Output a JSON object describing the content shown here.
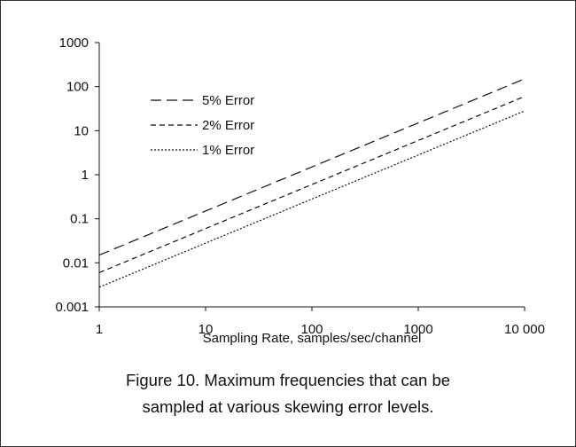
{
  "chart_data": {
    "type": "line",
    "xlabel": "Sampling Rate, samples/sec/channel",
    "ylabel": "",
    "x_scale": "log",
    "y_scale": "log",
    "xlim": [
      1,
      10000
    ],
    "ylim": [
      0.001,
      1000
    ],
    "x_ticks": [
      {
        "value": 1,
        "label": "1"
      },
      {
        "value": 10,
        "label": "10"
      },
      {
        "value": 100,
        "label": "100"
      },
      {
        "value": 1000,
        "label": "1000"
      },
      {
        "value": 10000,
        "label": "10 000"
      }
    ],
    "y_ticks": [
      {
        "value": 0.001,
        "label": "0.001"
      },
      {
        "value": 0.01,
        "label": "0.01"
      },
      {
        "value": 0.1,
        "label": "0.1"
      },
      {
        "value": 1,
        "label": "1"
      },
      {
        "value": 10,
        "label": "10"
      },
      {
        "value": 100,
        "label": "100"
      },
      {
        "value": 1000,
        "label": "1000"
      }
    ],
    "grid": false,
    "legend_position": "top-left",
    "series": [
      {
        "name": "5% Error",
        "dash": "long-dash",
        "x": [
          1,
          10000
        ],
        "y": [
          0.015,
          150
        ]
      },
      {
        "name": "2% Error",
        "dash": "short-dash",
        "x": [
          1,
          10000
        ],
        "y": [
          0.006,
          60
        ]
      },
      {
        "name": "1% Error",
        "dash": "dotted",
        "x": [
          1,
          10000
        ],
        "y": [
          0.0028,
          28
        ]
      }
    ]
  },
  "caption": {
    "line1": "Figure 10. Maximum frequencies that can be",
    "line2": "sampled at various skewing error levels."
  },
  "colors": {
    "line": "#111111",
    "border": "#333333",
    "background": "#ffffff"
  }
}
